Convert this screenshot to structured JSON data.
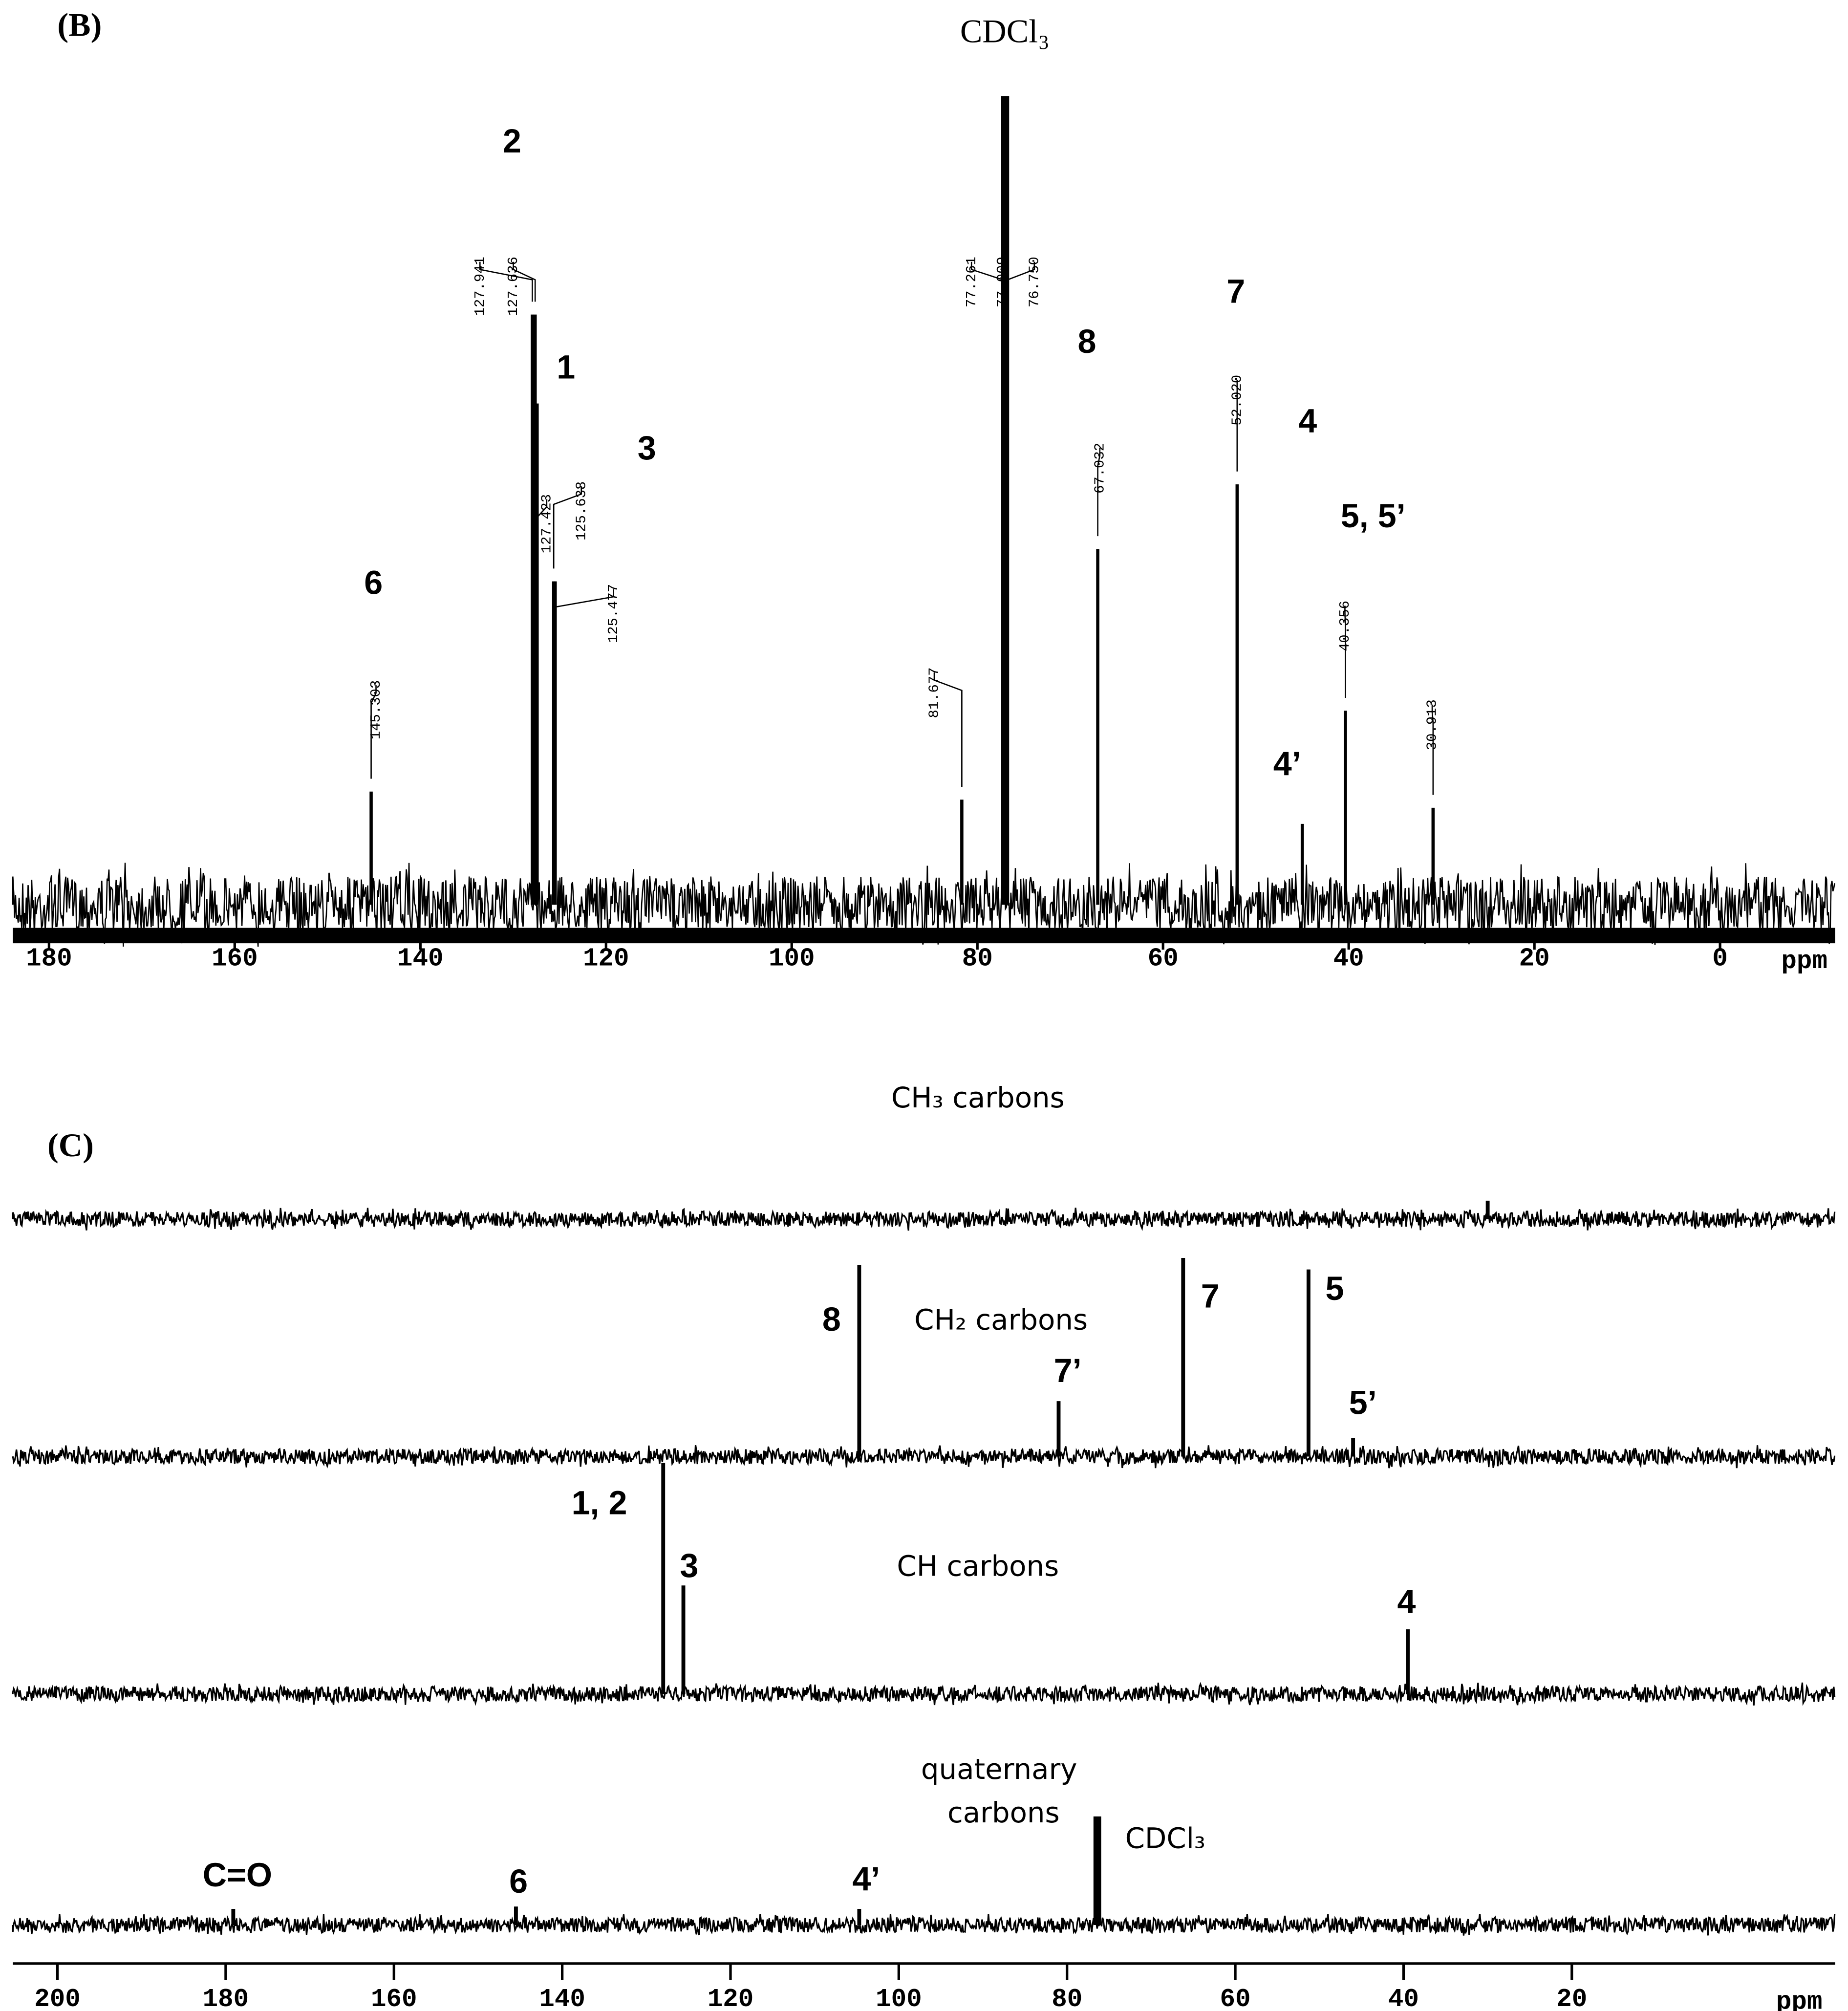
{
  "chart_data": [
    {
      "type": "spectrum",
      "panel": "(B)",
      "title": "CDCl₃",
      "x_unit": "ppm",
      "xlim": [
        183.9,
        -12.4
      ],
      "xticks": [
        180,
        160,
        140,
        120,
        100,
        80,
        60,
        40,
        20,
        0
      ],
      "ylim": [
        0,
        100
      ],
      "peaks": [
        {
          "x": 145.303,
          "label": "145.303",
          "height": 14
        },
        {
          "x": 127.941,
          "label": "127.941",
          "height": 73
        },
        {
          "x": 127.636,
          "label": "127.636",
          "height": 73
        },
        {
          "x": 127.423,
          "label": "127.423",
          "height": 62
        },
        {
          "x": 125.638,
          "label": "125.638",
          "height": 40
        },
        {
          "x": 125.477,
          "label": "125.477",
          "height": 40
        },
        {
          "x": 81.677,
          "label": "81.677",
          "height": 13
        },
        {
          "x": 77.261,
          "label": "77.261",
          "height": 100
        },
        {
          "x": 77.009,
          "label": "77.009",
          "height": 100
        },
        {
          "x": 76.75,
          "label": "76.750",
          "height": 100
        },
        {
          "x": 67.032,
          "label": "67.032",
          "height": 44
        },
        {
          "x": 52.02,
          "label": "52.020",
          "height": 52
        },
        {
          "x": 45,
          "height": 10
        },
        {
          "x": 40.356,
          "label": "40.356",
          "height": 24
        },
        {
          "x": 30.913,
          "label": "30.913",
          "height": 12
        }
      ],
      "annotations": [
        "2",
        "1",
        "3",
        "6",
        "8",
        "7",
        "4",
        "5, 5’",
        "4’"
      ]
    },
    {
      "type": "dept",
      "panel": "(C)",
      "x_unit": "ppm",
      "xlim": [
        205.3,
        -11.3
      ],
      "xticks": [
        200,
        180,
        160,
        140,
        120,
        100,
        80,
        60,
        40,
        20
      ],
      "ylim": [
        0,
        100
      ],
      "traces": [
        {
          "name": "CH₃ carbons",
          "peaks": [
            {
              "x": 30,
              "height": 8
            }
          ],
          "annotations": []
        },
        {
          "name": "CH₂ carbons",
          "peaks": [
            {
              "x": 104.7,
              "height": 83
            },
            {
              "x": 81,
              "height": 24
            },
            {
              "x": 66.2,
              "height": 86
            },
            {
              "x": 51.3,
              "height": 81
            },
            {
              "x": 46,
              "height": 8
            }
          ],
          "annotations": [
            "8",
            "7’",
            "7",
            "5",
            "5’"
          ]
        },
        {
          "name": "CH carbons",
          "peaks": [
            {
              "x": 128,
              "height": 100
            },
            {
              "x": 125.6,
              "height": 47
            },
            {
              "x": 39.5,
              "height": 28
            }
          ],
          "annotations": [
            "1, 2",
            "3",
            "4"
          ]
        },
        {
          "name": "quaternary carbons",
          "peaks": [
            {
              "x": 179.1,
              "height": 7
            },
            {
              "x": 145.5,
              "height": 8
            },
            {
              "x": 104.7,
              "height": 7
            },
            {
              "x": 76.4,
              "height": 47
            }
          ],
          "annotations": [
            "CDCl₃",
            "C=O",
            "6",
            "4’"
          ]
        }
      ]
    }
  ]
}
